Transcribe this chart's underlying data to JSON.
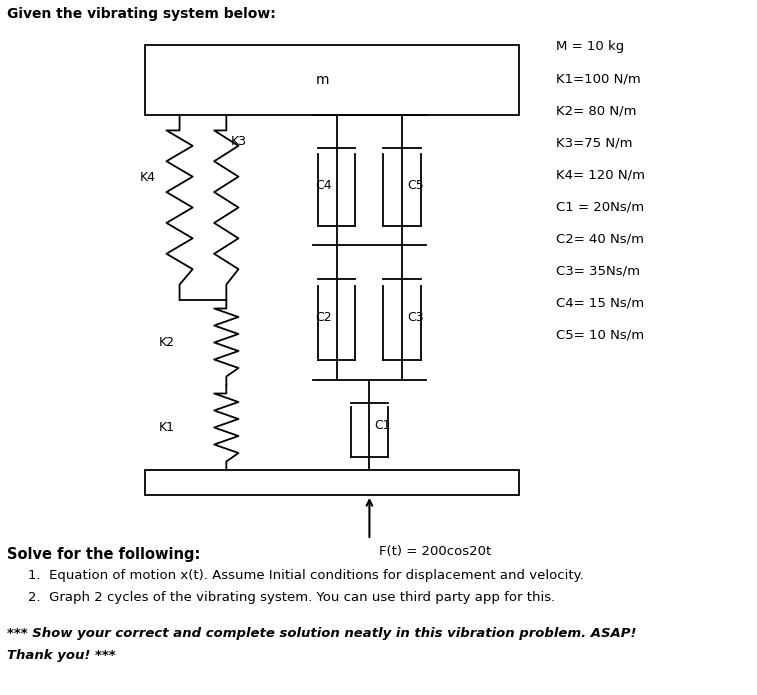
{
  "title_text": "Given the vibrating system below:",
  "mass_label": "m",
  "force_label": "F(t) = 200cos20t",
  "params": [
    "M = 10 kg",
    "K1=100 N/m",
    "K2= 80 N/m",
    "K3=75 N/m",
    "K4= 120 N/m",
    "C1 = 20Ns/m",
    "C2= 40 Ns/m",
    "C3= 35Ns/m",
    "C4= 15 Ns/m",
    "C5= 10 Ns/m"
  ],
  "solve_header": "Solve for the following:",
  "solve_items": [
    "Equation of motion x(t). Assume Initial conditions for displacement and velocity.",
    "Graph 2 cycles of the vibrating system. You can use third party app for this."
  ],
  "footer_line1": "*** Show your correct and complete solution neatly in this vibration problem. ASAP!",
  "footer_line2": "Thank you! ***",
  "bg_color": "#ffffff",
  "line_color": "#000000"
}
